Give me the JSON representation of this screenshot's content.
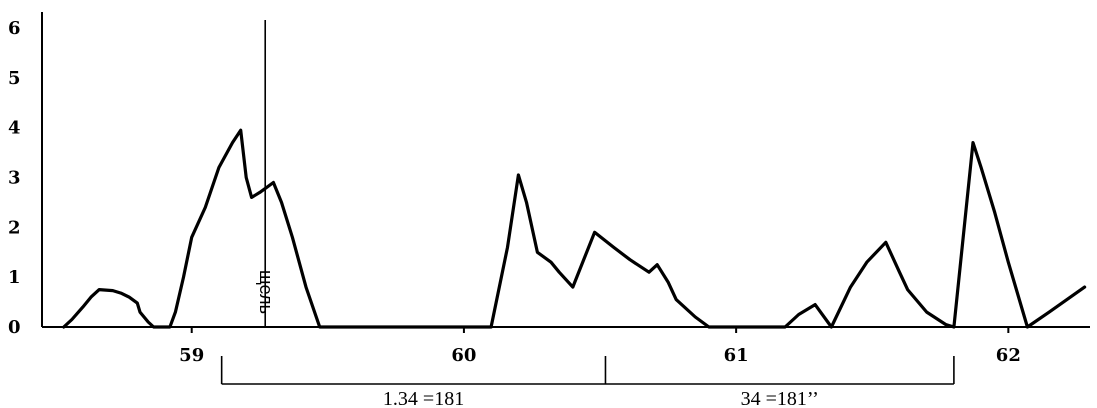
{
  "chart_data": {
    "type": "line",
    "title": "",
    "xlabel": "",
    "ylabel": "",
    "xlim": [
      58.45,
      62.3
    ],
    "ylim": [
      0,
      6
    ],
    "xticks": [
      "59",
      "60",
      "61",
      "62"
    ],
    "yticks": [
      "0",
      "1",
      "2",
      "3",
      "4",
      "5",
      "6"
    ],
    "grid": false,
    "series": [
      {
        "values": [
          [
            58.53,
            0
          ],
          [
            58.56,
            0.15
          ],
          [
            58.6,
            0.4
          ],
          [
            58.63,
            0.6
          ],
          [
            58.66,
            0.75
          ],
          [
            58.71,
            0.73
          ],
          [
            58.74,
            0.68
          ],
          [
            58.77,
            0.6
          ],
          [
            58.8,
            0.48
          ],
          [
            58.81,
            0.3
          ],
          [
            58.84,
            0.1
          ],
          [
            58.86,
            0.0
          ],
          [
            58.92,
            0.0
          ],
          [
            58.94,
            0.3
          ],
          [
            58.97,
            1.0
          ],
          [
            59.0,
            1.8
          ],
          [
            59.05,
            2.4
          ],
          [
            59.1,
            3.2
          ],
          [
            59.15,
            3.7
          ],
          [
            59.18,
            3.95
          ],
          [
            59.2,
            3.0
          ],
          [
            59.22,
            2.6
          ],
          [
            59.25,
            2.7
          ],
          [
            59.3,
            2.9
          ],
          [
            59.33,
            2.5
          ],
          [
            59.37,
            1.8
          ],
          [
            59.42,
            0.8
          ],
          [
            59.47,
            0.0
          ],
          [
            60.1,
            0.0
          ],
          [
            60.16,
            1.6
          ],
          [
            60.2,
            3.05
          ],
          [
            60.23,
            2.5
          ],
          [
            60.27,
            1.5
          ],
          [
            60.32,
            1.3
          ],
          [
            60.35,
            1.1
          ],
          [
            60.4,
            0.8
          ],
          [
            60.48,
            1.9
          ],
          [
            60.55,
            1.6
          ],
          [
            60.61,
            1.35
          ],
          [
            60.68,
            1.1
          ],
          [
            60.71,
            1.25
          ],
          [
            60.75,
            0.9
          ],
          [
            60.78,
            0.55
          ],
          [
            60.85,
            0.2
          ],
          [
            60.9,
            0.0
          ],
          [
            61.18,
            0.0
          ],
          [
            61.23,
            0.25
          ],
          [
            61.29,
            0.45
          ],
          [
            61.35,
            0.0
          ],
          [
            61.42,
            0.8
          ],
          [
            61.48,
            1.3
          ],
          [
            61.55,
            1.7
          ],
          [
            61.6,
            1.1
          ],
          [
            61.63,
            0.75
          ],
          [
            61.7,
            0.3
          ],
          [
            61.77,
            0.05
          ],
          [
            61.8,
            0.0
          ],
          [
            61.87,
            3.7
          ],
          [
            61.9,
            3.2
          ],
          [
            61.95,
            2.3
          ],
          [
            62.0,
            1.3
          ],
          [
            62.07,
            0.0
          ],
          [
            62.15,
            0.3
          ],
          [
            62.28,
            0.8
          ]
        ]
      }
    ],
    "annotations": {
      "slit_label": "щель",
      "slit_x": 59.27,
      "interval_left_label": "1.34 =181",
      "interval_right_label": "34 =181’’",
      "interval_bounds": [
        59.11,
        60.52,
        61.8
      ]
    }
  }
}
